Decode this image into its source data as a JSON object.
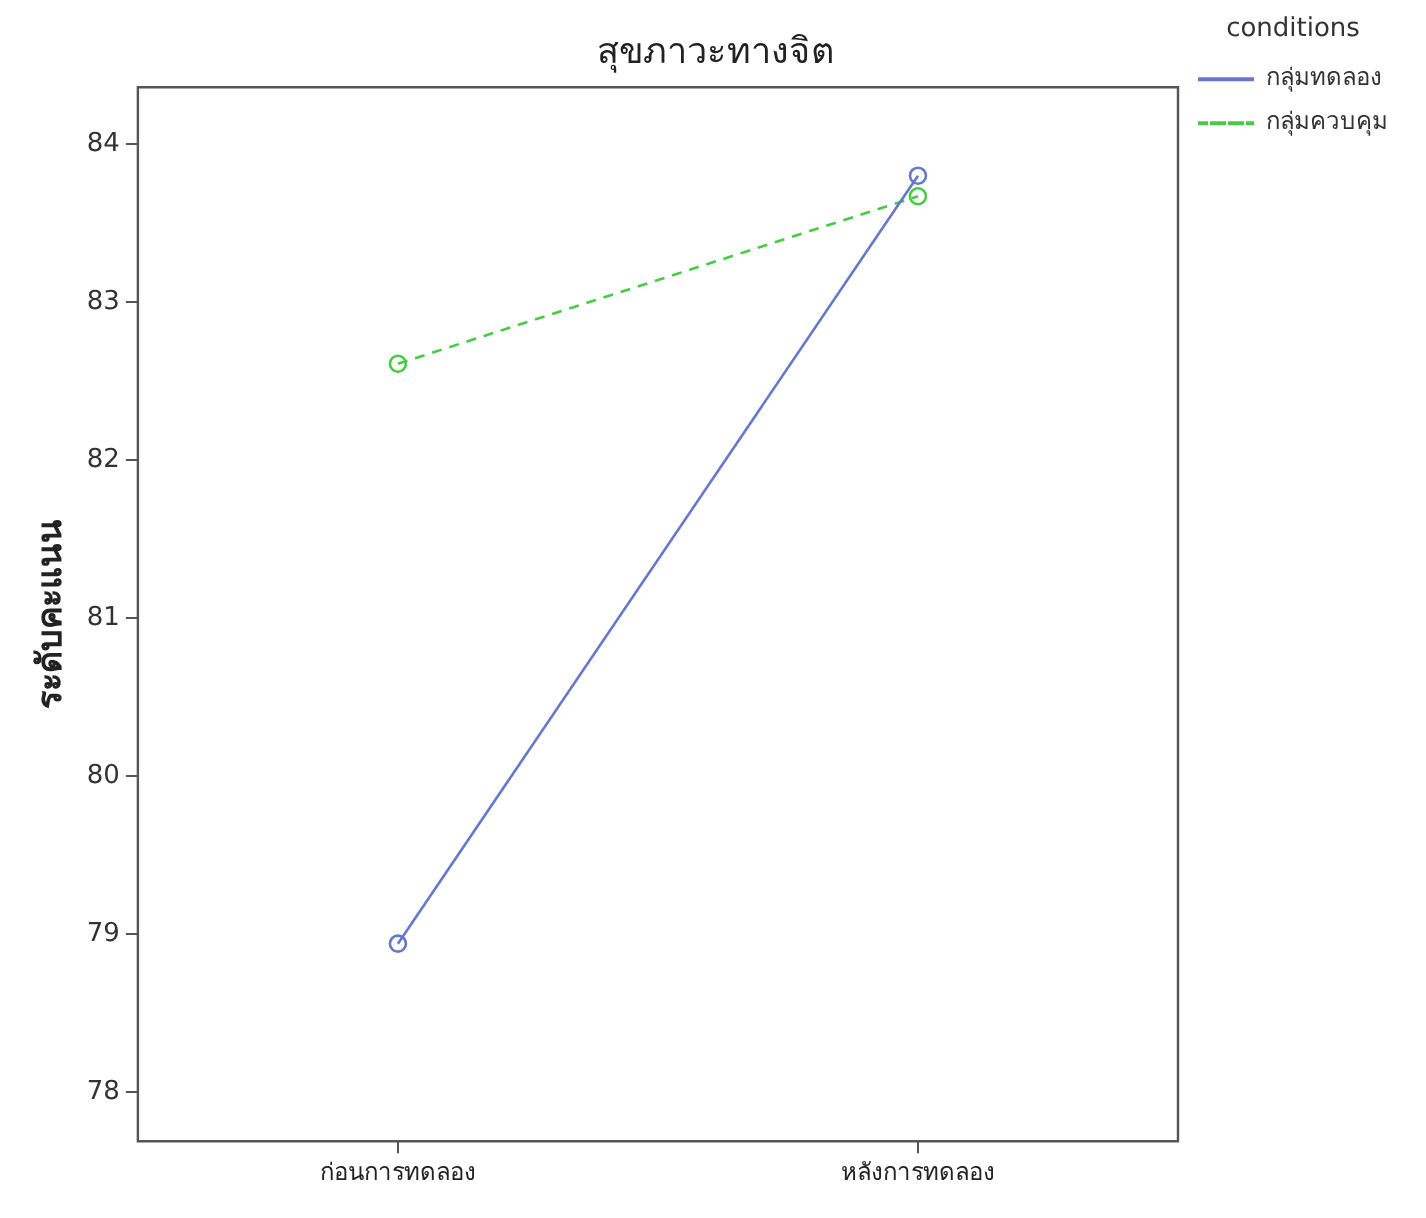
{
  "chart_data": {
    "type": "line",
    "title": "สุขภาวะทางจิต",
    "ylabel": "ระดับคะแนน",
    "legend_title": "conditions",
    "categories": [
      "ก่อนการทดลอง",
      "หลังการทดลอง"
    ],
    "series": [
      {
        "name": "กลุ่มทดลอง",
        "color": "#6677cc",
        "values": [
          78.94,
          83.8
        ],
        "line_style": "solid"
      },
      {
        "name": "กลุ่มควบคุม",
        "color": "#44cc44",
        "values": [
          82.61,
          83.67
        ],
        "line_style": "dashed"
      }
    ],
    "ylim": [
      77.69,
      84.36
    ],
    "yticks": [
      78,
      79,
      80,
      81,
      82,
      83,
      84
    ],
    "grid": false,
    "legend": "top right",
    "marker": "circle"
  }
}
